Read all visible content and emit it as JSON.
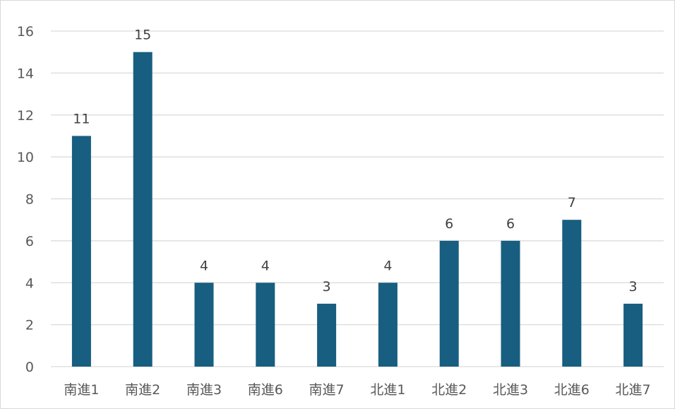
{
  "chart_data": {
    "type": "bar",
    "title": "",
    "xlabel": "",
    "ylabel": "",
    "categories": [
      "南進1",
      "南進2",
      "南進3",
      "南進6",
      "南進7",
      "北進1",
      "北進2",
      "北進3",
      "北進6",
      "北進7"
    ],
    "values": [
      11,
      15,
      4,
      4,
      3,
      4,
      6,
      6,
      7,
      3
    ],
    "ylim": [
      0,
      16
    ],
    "yticks": [
      0,
      2,
      4,
      6,
      8,
      10,
      12,
      14,
      16
    ],
    "grid": true,
    "legend": "none",
    "data_labels": true,
    "colors": {
      "bar": "#175e80",
      "grid": "#d9d9d9",
      "text": "#595959"
    }
  }
}
